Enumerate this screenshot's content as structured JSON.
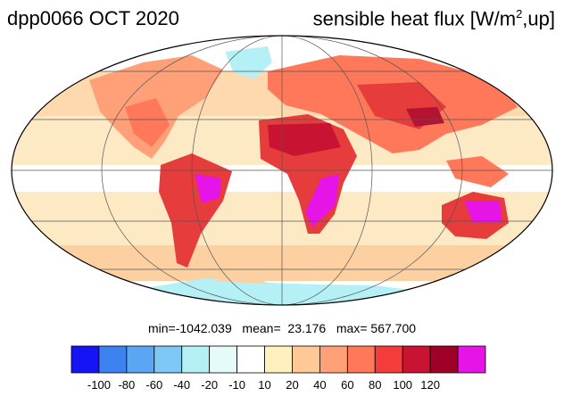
{
  "title": {
    "run_date": "dpp0066 OCT 2020",
    "variable_prefix": "sensible heat flux [W/m",
    "variable_sup": "2",
    "variable_suffix": ",up]"
  },
  "stats": {
    "text": "min=-1042.039   mean=  23.176   max= 567.700"
  },
  "colorbar": {
    "colors": [
      "#1414f5",
      "#3c82f0",
      "#5aa6f5",
      "#7dc8f5",
      "#b4f0f5",
      "#e6fafa",
      "#ffffff",
      "#fff0be",
      "#ffc896",
      "#ffa078",
      "#ff785a",
      "#f53c3c",
      "#c81432",
      "#a00028",
      "#e614e6"
    ],
    "tick_labels": [
      "-100",
      "-80",
      "-60",
      "-40",
      "-20",
      "-10",
      "10",
      "20",
      "40",
      "60",
      "80",
      "100",
      "120"
    ]
  },
  "map_colors": {
    "ocean_warm": "#fde9c4",
    "ocean_mid": "#fdd0a2",
    "ocean_cool": "#ffffff",
    "ice_blue": "#c8f0f8",
    "land_hot": "#ff785a",
    "land_hotter": "#e63c3c",
    "land_extreme": "#b41432",
    "magenta": "#e614e6"
  }
}
